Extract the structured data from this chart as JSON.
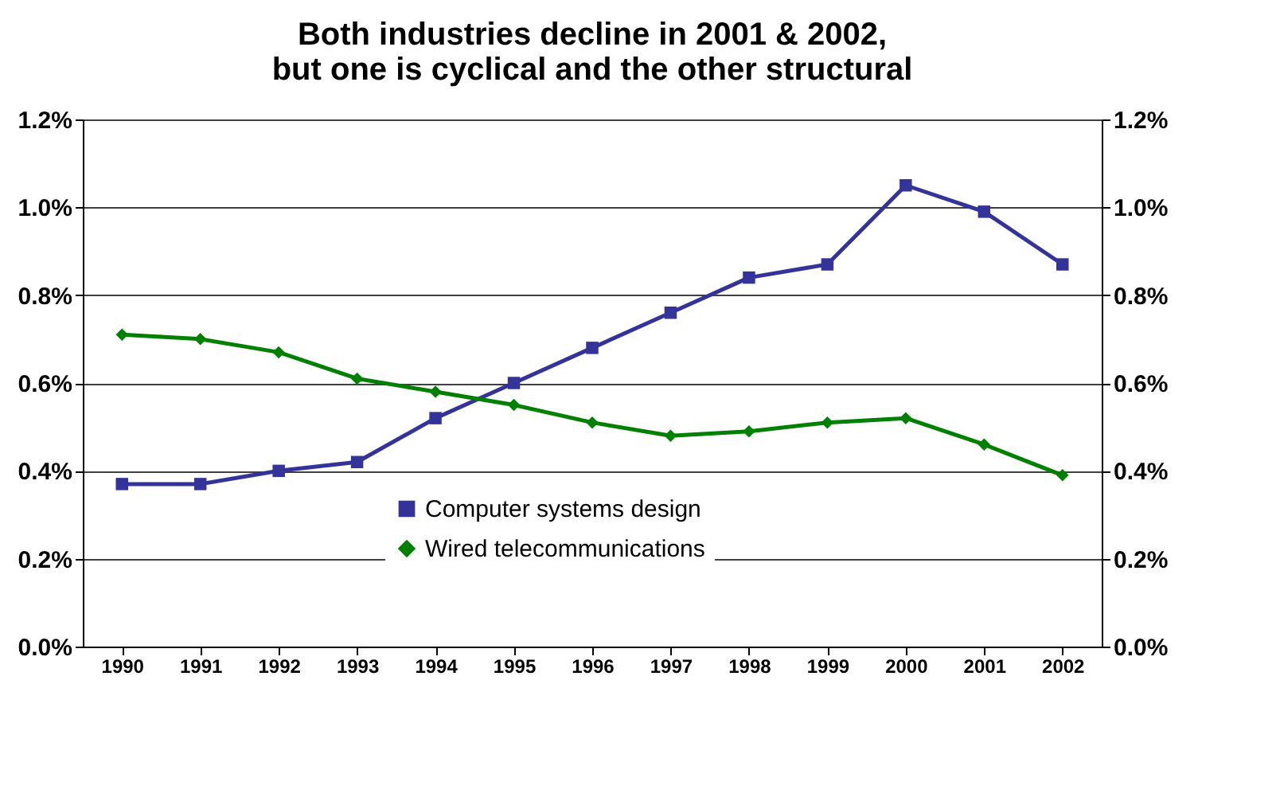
{
  "chart_data": {
    "type": "line",
    "title": "Both industries decline in 2001 & 2002,\nbut one is cyclical and the other structural",
    "categories": [
      "1990",
      "1991",
      "1992",
      "1993",
      "1994",
      "1995",
      "1996",
      "1997",
      "1998",
      "1999",
      "2000",
      "2001",
      "2002"
    ],
    "series": [
      {
        "name": "Computer systems design",
        "color": "#333399",
        "marker": "square",
        "values": [
          0.37,
          0.37,
          0.4,
          0.42,
          0.52,
          0.6,
          0.68,
          0.76,
          0.84,
          0.87,
          1.05,
          0.99,
          0.87
        ]
      },
      {
        "name": "Wired telecommunications",
        "color": "#008000",
        "marker": "diamond",
        "values": [
          0.71,
          0.7,
          0.67,
          0.61,
          0.58,
          0.55,
          0.51,
          0.48,
          0.49,
          0.51,
          0.52,
          0.46,
          0.39
        ]
      }
    ],
    "ylim": [
      0,
      1.2
    ],
    "yticks": [
      {
        "value": 0,
        "label": "0.0%"
      },
      {
        "value": 0.2,
        "label": "0.2%"
      },
      {
        "value": 0.4,
        "label": "0.4%"
      },
      {
        "value": 0.6,
        "label": "0.6%"
      },
      {
        "value": 0.8,
        "label": "0.8%"
      },
      {
        "value": 1.0,
        "label": "1.0%"
      },
      {
        "value": 1.2,
        "label": "1.2%"
      }
    ],
    "y2lim": [
      0,
      1.2
    ],
    "y2ticks": [
      {
        "value": 0,
        "label": "0.0%"
      },
      {
        "value": 0.2,
        "label": "0.2%"
      },
      {
        "value": 0.4,
        "label": "0.4%"
      },
      {
        "value": 0.6,
        "label": "0.6%"
      },
      {
        "value": 0.8,
        "label": "0.8%"
      },
      {
        "value": 1.0,
        "label": "1.0%"
      },
      {
        "value": 1.2,
        "label": "1.2%"
      }
    ],
    "grid": "y",
    "legend": "bottom",
    "line_style": "solid"
  }
}
